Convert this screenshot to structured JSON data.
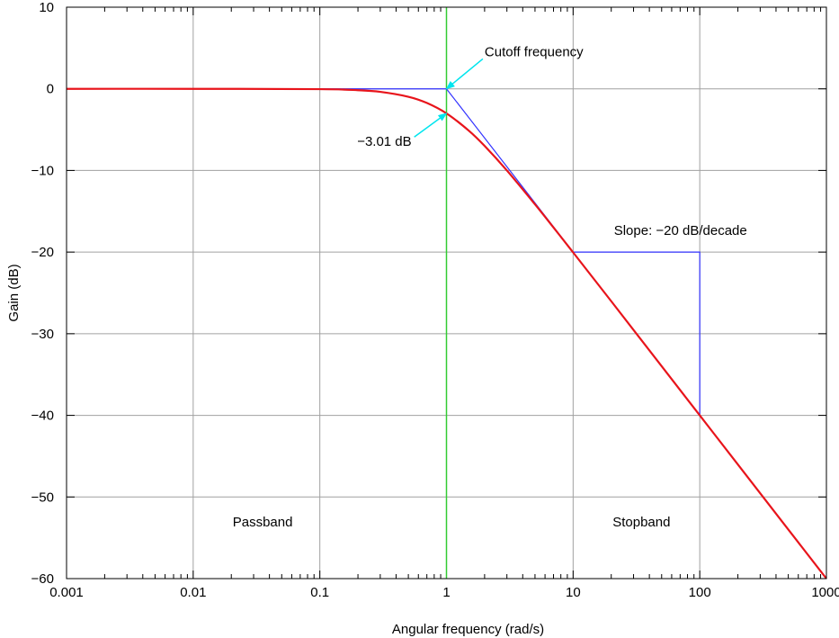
{
  "chart_data": {
    "type": "line",
    "title": "",
    "xlabel": "Angular frequency (rad/s)",
    "ylabel": "Gain (dB)",
    "x_scale": "log",
    "xlim": [
      0.001,
      1000
    ],
    "ylim": [
      -60,
      10
    ],
    "grid": true,
    "x_ticks": [
      {
        "value": 0.001,
        "label": "0.001"
      },
      {
        "value": 0.01,
        "label": "0.01"
      },
      {
        "value": 0.1,
        "label": "0.1"
      },
      {
        "value": 1,
        "label": "1"
      },
      {
        "value": 10,
        "label": "10"
      },
      {
        "value": 100,
        "label": "100"
      },
      {
        "value": 1000,
        "label": "1000"
      }
    ],
    "y_ticks": [
      {
        "value": 10,
        "label": "10"
      },
      {
        "value": 0,
        "label": "0"
      },
      {
        "value": -10,
        "label": "−10"
      },
      {
        "value": -20,
        "label": "−20"
      },
      {
        "value": -30,
        "label": "−30"
      },
      {
        "value": -40,
        "label": "−40"
      },
      {
        "value": -50,
        "label": "−50"
      },
      {
        "value": -60,
        "label": "−60"
      }
    ],
    "series": [
      {
        "color": "#e8141b",
        "x": [
          0.001,
          0.01,
          0.1,
          0.2,
          0.3,
          0.5,
          0.7,
          1,
          1.5,
          2,
          3,
          5,
          7,
          10,
          20,
          50,
          100,
          200,
          500,
          1000
        ],
        "y": [
          0,
          0,
          -0.04,
          -0.17,
          -0.37,
          -0.97,
          -1.73,
          -3.01,
          -5.12,
          -6.99,
          -10.0,
          -14.15,
          -16.99,
          -20.04,
          -26.02,
          -33.98,
          -40.0,
          -46.02,
          -53.98,
          -60.0
        ]
      },
      {
        "color": "#3333ff",
        "x": [
          0.001,
          1,
          1000
        ],
        "y": [
          0,
          0,
          -60
        ]
      }
    ],
    "reference_lines": [
      {
        "orientation": "vertical",
        "x": 1,
        "color": "#33cc33"
      }
    ],
    "slope_indicator": {
      "color": "#3333ff",
      "x_start": 10,
      "x_end": 100,
      "y_start": -20,
      "y_end": -40
    },
    "annotations": [
      {
        "text": "Cutoff frequency",
        "x": 2.0,
        "y": 4,
        "anchor": "start",
        "arrow_to": {
          "x": 1,
          "y": 0
        },
        "arrow_color": "#00e5ee"
      },
      {
        "text": "−3.01 dB",
        "x": 0.53,
        "y": -7,
        "anchor": "end",
        "arrow_to": {
          "x": 1,
          "y": -3.01
        },
        "arrow_color": "#00e5ee"
      },
      {
        "text": "Slope: −20 dB/decade",
        "x": 21,
        "y": -17.9,
        "anchor": "start"
      },
      {
        "text": "Passband",
        "x": 0.0205,
        "y": -53.6,
        "anchor": "start"
      },
      {
        "text": "Stopband",
        "x": 20.5,
        "y": -53.6,
        "anchor": "start"
      }
    ]
  }
}
